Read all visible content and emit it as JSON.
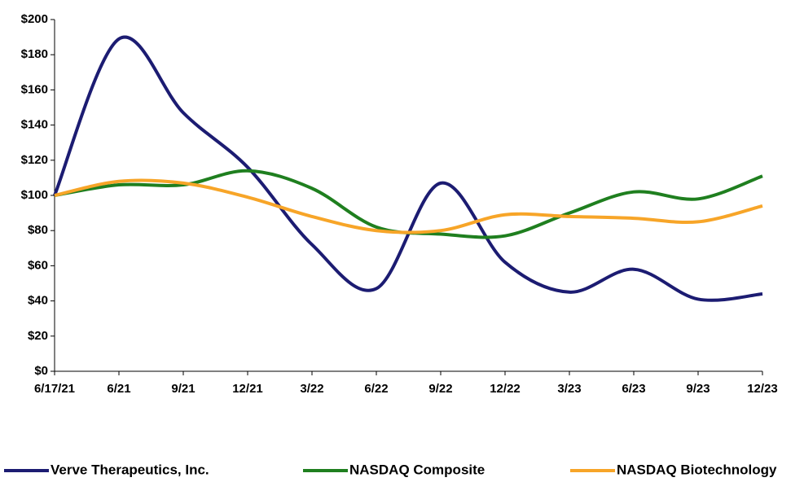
{
  "chart_data": {
    "type": "line",
    "categories": [
      "6/17/21",
      "6/21",
      "9/21",
      "12/21",
      "3/22",
      "6/22",
      "9/22",
      "12/22",
      "3/23",
      "6/23",
      "9/23",
      "12/23"
    ],
    "series": [
      {
        "name": "Verve Therapeutics, Inc.",
        "color": "#1c1c72",
        "values": [
          100,
          189,
          147,
          116,
          72,
          47,
          107,
          62,
          45,
          58,
          41,
          44
        ]
      },
      {
        "name": "NASDAQ Composite",
        "color": "#1f7f1f",
        "values": [
          100,
          106,
          106,
          114,
          104,
          82,
          78,
          77,
          90,
          102,
          98,
          111
        ]
      },
      {
        "name": "NASDAQ Biotechnology",
        "color": "#f7a528",
        "values": [
          100,
          108,
          107,
          99,
          88,
          80,
          80,
          89,
          88,
          87,
          85,
          94
        ]
      }
    ],
    "ylim": [
      0,
      200
    ],
    "yticks": [
      {
        "value": 0,
        "label": "$0"
      },
      {
        "value": 20,
        "label": "$20"
      },
      {
        "value": 40,
        "label": "$40"
      },
      {
        "value": 60,
        "label": "$60"
      },
      {
        "value": 80,
        "label": "$80"
      },
      {
        "value": 100,
        "label": "$100"
      },
      {
        "value": 120,
        "label": "$120"
      },
      {
        "value": 140,
        "label": "$140"
      },
      {
        "value": 160,
        "label": "$160"
      },
      {
        "value": 180,
        "label": "$180"
      },
      {
        "value": 200,
        "label": "$200"
      }
    ],
    "grid": false,
    "smooth": true,
    "legend": "bottom"
  }
}
